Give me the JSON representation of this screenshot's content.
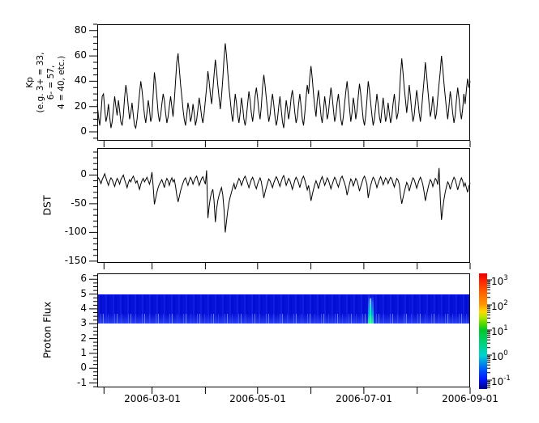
{
  "figure": {
    "background": "#ffffff",
    "frame_color": "#000000",
    "series_color": "#000000"
  },
  "x_axis": {
    "tick_dates": [
      "2006-02-01",
      "2006-03-01",
      "2006-04-01",
      "2006-05-01",
      "2006-06-01",
      "2006-07-01",
      "2006-08-01",
      "2006-09-01"
    ],
    "labels": [
      "2006-03-01",
      "2006-05-01",
      "2006-07-01",
      "2006-09-01"
    ]
  },
  "chart_data": [
    {
      "type": "line",
      "ylabel_lines": [
        "Kp",
        "(e.g. 3+ = 33,",
        "6- = 57,",
        "4 = 40, etc.)"
      ],
      "yticks": [
        0,
        20,
        40,
        60,
        80
      ],
      "y_minor_step": 5,
      "ylim": [
        -7,
        85
      ],
      "x_range": [
        "2006-02-01",
        "2006-09-01"
      ],
      "values": [
        22,
        12,
        5,
        15,
        28,
        30,
        18,
        8,
        13,
        22,
        12,
        3,
        8,
        18,
        28,
        20,
        13,
        25,
        17,
        8,
        5,
        13,
        27,
        37,
        30,
        20,
        10,
        15,
        23,
        13,
        5,
        3,
        10,
        20,
        30,
        40,
        33,
        23,
        13,
        7,
        15,
        25,
        18,
        8,
        12,
        30,
        47,
        38,
        27,
        15,
        8,
        13,
        22,
        30,
        25,
        15,
        7,
        12,
        20,
        28,
        20,
        12,
        25,
        40,
        55,
        62,
        50,
        38,
        28,
        18,
        10,
        5,
        13,
        23,
        17,
        8,
        12,
        22,
        15,
        5,
        10,
        18,
        27,
        20,
        12,
        7,
        15,
        25,
        35,
        48,
        40,
        30,
        22,
        33,
        45,
        57,
        48,
        37,
        27,
        18,
        28,
        42,
        58,
        70,
        60,
        47,
        35,
        25,
        15,
        8,
        18,
        30,
        23,
        13,
        7,
        15,
        27,
        20,
        10,
        5,
        12,
        22,
        32,
        25,
        15,
        8,
        17,
        28,
        35,
        27,
        17,
        10,
        20,
        35,
        45,
        37,
        27,
        17,
        8,
        13,
        23,
        30,
        22,
        12,
        5,
        10,
        20,
        28,
        18,
        8,
        3,
        13,
        25,
        18,
        10,
        17,
        27,
        33,
        25,
        15,
        7,
        12,
        22,
        30,
        20,
        10,
        5,
        15,
        27,
        37,
        30,
        43,
        52,
        42,
        30,
        20,
        12,
        25,
        33,
        23,
        13,
        7,
        17,
        28,
        20,
        10,
        15,
        25,
        35,
        28,
        18,
        8,
        13,
        23,
        30,
        20,
        10,
        5,
        12,
        22,
        32,
        40,
        30,
        18,
        8,
        15,
        27,
        20,
        10,
        17,
        28,
        38,
        30,
        20,
        10,
        5,
        13,
        25,
        40,
        33,
        23,
        13,
        5,
        10,
        20,
        30,
        22,
        12,
        7,
        17,
        27,
        18,
        8,
        13,
        23,
        15,
        7,
        12,
        22,
        30,
        20,
        10,
        15,
        27,
        45,
        58,
        47,
        35,
        25,
        15,
        25,
        37,
        28,
        17,
        8,
        13,
        23,
        33,
        25,
        15,
        8,
        18,
        30,
        42,
        55,
        45,
        33,
        22,
        12,
        18,
        28,
        20,
        10,
        15,
        27,
        38,
        48,
        60,
        50,
        38,
        28,
        18,
        10,
        20,
        32,
        25,
        15,
        7,
        13,
        25,
        35,
        27,
        17,
        10,
        18,
        30,
        22,
        33,
        42,
        35,
        40
      ]
    },
    {
      "type": "line",
      "ylabel": "DST",
      "yticks": [
        0,
        -50,
        -100,
        -150
      ],
      "y_minor_step": 10,
      "ylim": [
        -153,
        47
      ],
      "x_range": [
        "2006-02-01",
        "2006-09-01"
      ],
      "values": [
        -8,
        -5,
        -10,
        -15,
        -8,
        -3,
        2,
        -5,
        -12,
        -18,
        -10,
        -5,
        -8,
        -14,
        -20,
        -12,
        -6,
        -10,
        -16,
        -8,
        -4,
        0,
        -8,
        -15,
        -22,
        -14,
        -8,
        -12,
        -6,
        -2,
        -8,
        -14,
        -10,
        -18,
        -25,
        -16,
        -10,
        -6,
        -12,
        -8,
        -4,
        -10,
        -16,
        -8,
        5,
        -20,
        -51,
        -40,
        -30,
        -22,
        -16,
        -12,
        -8,
        -15,
        -22,
        -12,
        -6,
        -10,
        -18,
        -10,
        -5,
        -12,
        -8,
        -20,
        -35,
        -47,
        -38,
        -28,
        -20,
        -14,
        -8,
        -5,
        -12,
        -18,
        -10,
        -4,
        -8,
        -16,
        -10,
        -5,
        -2,
        -10,
        -18,
        -12,
        -6,
        -3,
        -10,
        -16,
        8,
        -75,
        -55,
        -40,
        -30,
        -25,
        -45,
        -82,
        -60,
        -45,
        -35,
        -28,
        -22,
        -35,
        -60,
        -100,
        -80,
        -62,
        -48,
        -38,
        -30,
        -22,
        -15,
        -25,
        -18,
        -12,
        -6,
        -10,
        -18,
        -12,
        -6,
        -2,
        -8,
        -15,
        -22,
        -15,
        -8,
        -4,
        -10,
        -18,
        -24,
        -16,
        -10,
        -5,
        -12,
        -25,
        -40,
        -30,
        -22,
        -14,
        -7,
        -10,
        -16,
        -22,
        -14,
        -8,
        -3,
        -7,
        -14,
        -20,
        -12,
        -5,
        -1,
        -8,
        -18,
        -12,
        -6,
        -10,
        -17,
        -25,
        -17,
        -9,
        -4,
        -8,
        -14,
        -22,
        -13,
        -6,
        -2,
        -9,
        -17,
        -26,
        -18,
        -30,
        -45,
        -34,
        -25,
        -17,
        -10,
        -16,
        -24,
        -15,
        -8,
        -3,
        -10,
        -18,
        -12,
        -5,
        -9,
        -16,
        -24,
        -17,
        -10,
        -4,
        -8,
        -15,
        -21,
        -13,
        -6,
        -2,
        -8,
        -14,
        -22,
        -35,
        -26,
        -15,
        -7,
        -11,
        -19,
        -13,
        -6,
        -10,
        -18,
        -28,
        -20,
        -13,
        -6,
        -2,
        -8,
        -16,
        -40,
        -28,
        -18,
        -10,
        -4,
        -7,
        -14,
        -22,
        -15,
        -8,
        -3,
        -9,
        -17,
        -11,
        -5,
        -8,
        -15,
        -9,
        -4,
        -7,
        -14,
        -21,
        -13,
        -6,
        -9,
        -16,
        -35,
        -50,
        -40,
        -30,
        -21,
        -13,
        -18,
        -28,
        -20,
        -12,
        -5,
        -8,
        -15,
        -23,
        -16,
        -9,
        -4,
        -9,
        -17,
        -30,
        -45,
        -34,
        -24,
        -15,
        -8,
        -12,
        -20,
        -13,
        -6,
        -9,
        -17,
        12,
        -40,
        -78,
        -58,
        -42,
        -30,
        -20,
        -12,
        -16,
        -25,
        -17,
        -10,
        -4,
        -8,
        -16,
        -26,
        -18,
        -11,
        -5,
        -10,
        -20,
        -14,
        -22,
        -30,
        -20,
        -14
      ]
    },
    {
      "type": "heatmap",
      "ylabel": "Proton Flux",
      "yticks": [
        -1,
        0,
        1,
        2,
        3,
        4,
        5,
        6
      ],
      "y_minor_step": 0.25,
      "ylim": [
        -1.3,
        6.4
      ],
      "x_range": [
        "2006-02-01",
        "2006-09-01"
      ],
      "band": {
        "y_range": [
          3,
          5
        ],
        "base_color": "#0611da",
        "streak_color": "#4e6aff"
      },
      "event": {
        "x_frac": 0.736,
        "approx_date": "2006-07-05",
        "colors": [
          "#46aaff",
          "#00e0d0",
          "#3cff8e"
        ]
      },
      "colorbar": {
        "scale": "log10",
        "base": 10,
        "tick_exponents": [
          3,
          2,
          1,
          0,
          -1
        ],
        "gradient": [
          "#e60000",
          "#ff9600",
          "#ffd800",
          "#00c828",
          "#00d2d2",
          "#0050ff",
          "#000082"
        ]
      }
    }
  ]
}
